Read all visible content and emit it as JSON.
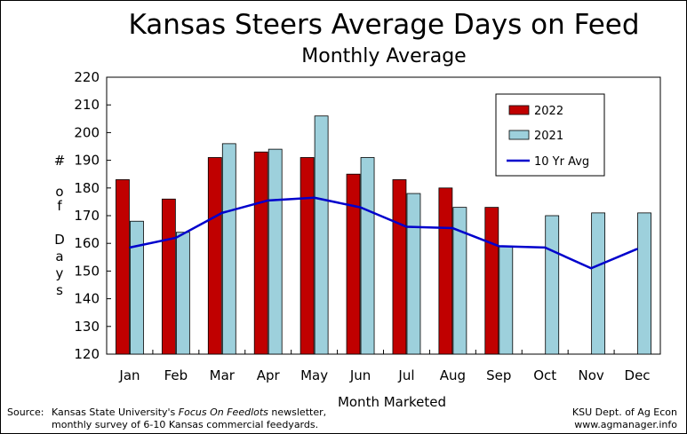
{
  "title": "Kansas Steers Average Days on Feed",
  "subtitle": "Monthly Average",
  "footer": {
    "source_label": "Source:",
    "source_line1_a": "Kansas State University's ",
    "source_line1_italic": "Focus On Feedlots",
    "source_line1_b": " newsletter,",
    "source_line2": "monthly survey of 6-10 Kansas commercial feedyards.",
    "credit_line1": "KSU Dept. of Ag Econ",
    "credit_line2": "www.agmanager.info"
  },
  "colors": {
    "series_2022": "#c00000",
    "series_2021": "#9dd0dc",
    "series_10yr": "#0000cc",
    "frame": "#000000"
  },
  "chart_data": {
    "type": "bar",
    "title": "Kansas Steers Average Days on Feed",
    "subtitle": "Monthly Average",
    "xlabel": "Month Marketed",
    "ylabel_chars": [
      "#",
      "",
      "o",
      "f",
      "",
      "D",
      "a",
      "y",
      "s"
    ],
    "ylim": [
      120,
      220
    ],
    "yticks": [
      120,
      130,
      140,
      150,
      160,
      170,
      180,
      190,
      200,
      210,
      220
    ],
    "grid": false,
    "legend_position": "top-right",
    "categories": [
      "Jan",
      "Feb",
      "Mar",
      "Apr",
      "May",
      "Jun",
      "Jul",
      "Aug",
      "Sep",
      "Oct",
      "Nov",
      "Dec"
    ],
    "series": [
      {
        "name": "2022",
        "type": "bar",
        "values": [
          183,
          176,
          191,
          193,
          191,
          185,
          183,
          180,
          173,
          null,
          null,
          null
        ]
      },
      {
        "name": "2021",
        "type": "bar",
        "values": [
          168,
          164,
          196,
          194,
          206,
          191,
          178,
          173,
          159,
          170,
          171,
          171
        ]
      },
      {
        "name": "10 Yr Avg",
        "type": "line",
        "values": [
          158.5,
          162,
          171,
          175.5,
          176.5,
          173,
          166,
          165.5,
          159,
          158.5,
          151,
          158
        ]
      }
    ]
  }
}
